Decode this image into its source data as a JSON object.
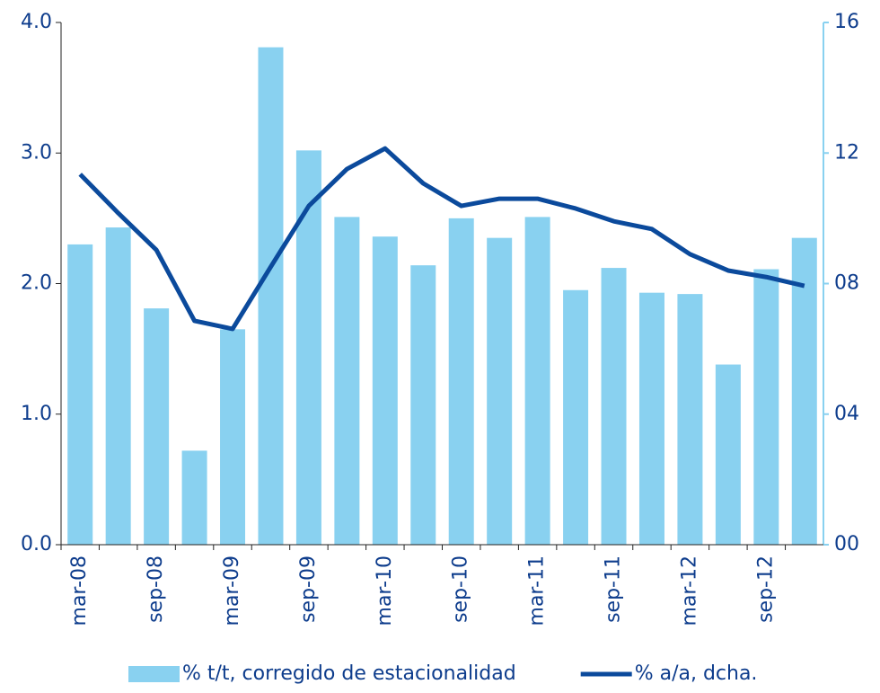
{
  "chart_data": {
    "type": "bar",
    "categories": [
      "mar-08",
      null,
      "sep-08",
      null,
      "mar-09",
      null,
      "sep-09",
      null,
      "mar-10",
      null,
      "sep-10",
      null,
      "mar-11",
      null,
      "sep-11",
      null,
      "mar-12",
      null,
      "sep-12",
      null
    ],
    "series": [
      {
        "name": "% t/t, corregido de estacionalidad",
        "type": "bar",
        "color": "#89d1f0",
        "values": [
          2.3,
          2.43,
          1.81,
          0.72,
          1.65,
          3.81,
          3.02,
          2.51,
          2.36,
          2.14,
          2.5,
          2.35,
          2.51,
          1.95,
          2.12,
          1.93,
          1.92,
          1.38,
          2.11,
          2.35
        ]
      },
      {
        "name": "% a/a, dcha.",
        "type": "line",
        "axis": "y2",
        "color": "#0b4a9c",
        "values": [
          11.35,
          10.16,
          9.03,
          6.86,
          6.61,
          8.51,
          10.38,
          11.51,
          12.14,
          11.07,
          10.38,
          10.6,
          10.6,
          10.3,
          9.91,
          9.67,
          8.9,
          8.4,
          8.2,
          7.93
        ]
      }
    ],
    "ylim": [
      0,
      4
    ],
    "yticks": [
      {
        "value": 0,
        "label": "0.0"
      },
      {
        "value": 1,
        "label": "1.0"
      },
      {
        "value": 2,
        "label": "2.0"
      },
      {
        "value": 3,
        "label": "3.0"
      },
      {
        "value": 4,
        "label": "4.0"
      }
    ],
    "y2lim": [
      0,
      16
    ],
    "y2ticks": [
      {
        "value": 0,
        "label": "00"
      },
      {
        "value": 4,
        "label": "04"
      },
      {
        "value": 8,
        "label": "08"
      },
      {
        "value": 12,
        "label": "12"
      },
      {
        "value": 16,
        "label": "16"
      }
    ],
    "legend": "bottom"
  }
}
